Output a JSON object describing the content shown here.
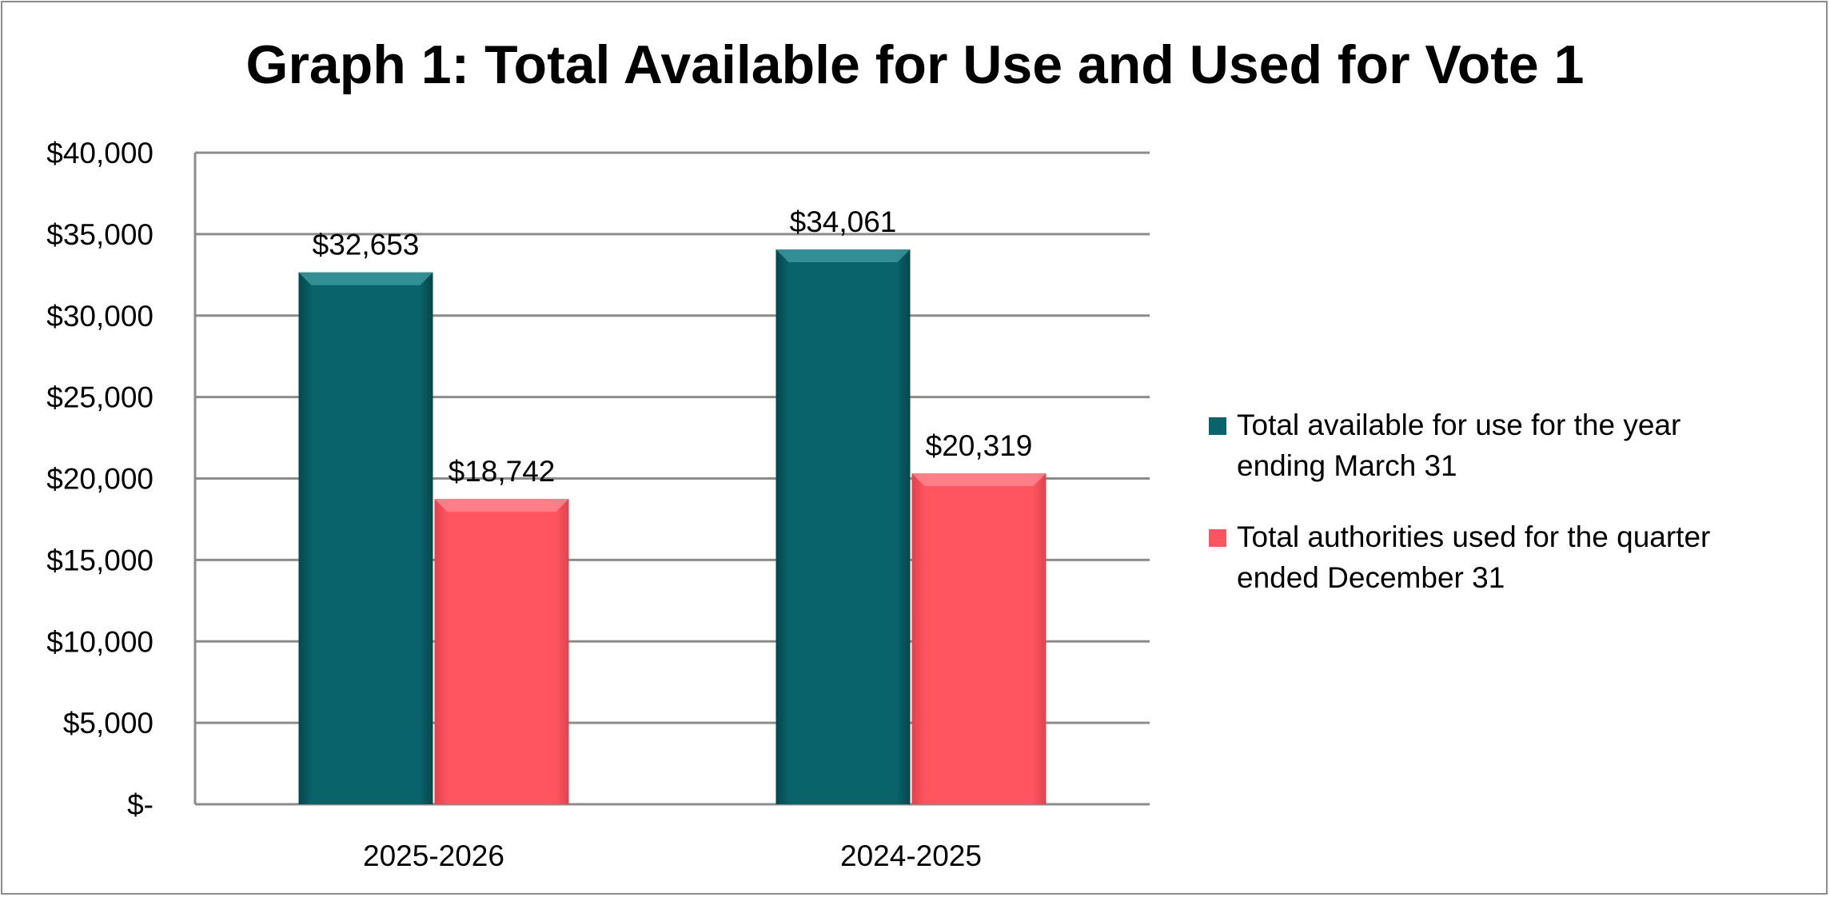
{
  "chart_data": {
    "type": "bar",
    "title": "Graph 1: Total Available for Use and Used for Vote 1",
    "categories": [
      "2025-2026",
      "2024-2025"
    ],
    "series": [
      {
        "name": "Total available for use for the year ending March 31",
        "values": [
          32653,
          34061
        ],
        "labels": [
          "$32,653",
          "$34,061"
        ],
        "color": "#08636A"
      },
      {
        "name": "Total authorities used for the quarter ended December 31",
        "values": [
          18742,
          20319
        ],
        "labels": [
          "$18,742",
          "$20,319"
        ],
        "color": "#FF5561"
      }
    ],
    "ylim": [
      0,
      40000
    ],
    "yticks": [
      0,
      5000,
      10000,
      15000,
      20000,
      25000,
      30000,
      35000,
      40000
    ],
    "ytick_labels": [
      "$-",
      "$5,000",
      "$10,000",
      "$15,000",
      "$20,000",
      "$25,000",
      "$30,000",
      "$35,000",
      "$40,000"
    ],
    "grid": true,
    "legend_position": "right",
    "xlabel": "",
    "ylabel": ""
  },
  "legend": {
    "item0_line1": "Total available for use for the year",
    "item0_line2": "ending March 31",
    "item1_line1": "Total authorities used for the quarter",
    "item1_line2": "ended December 31"
  }
}
